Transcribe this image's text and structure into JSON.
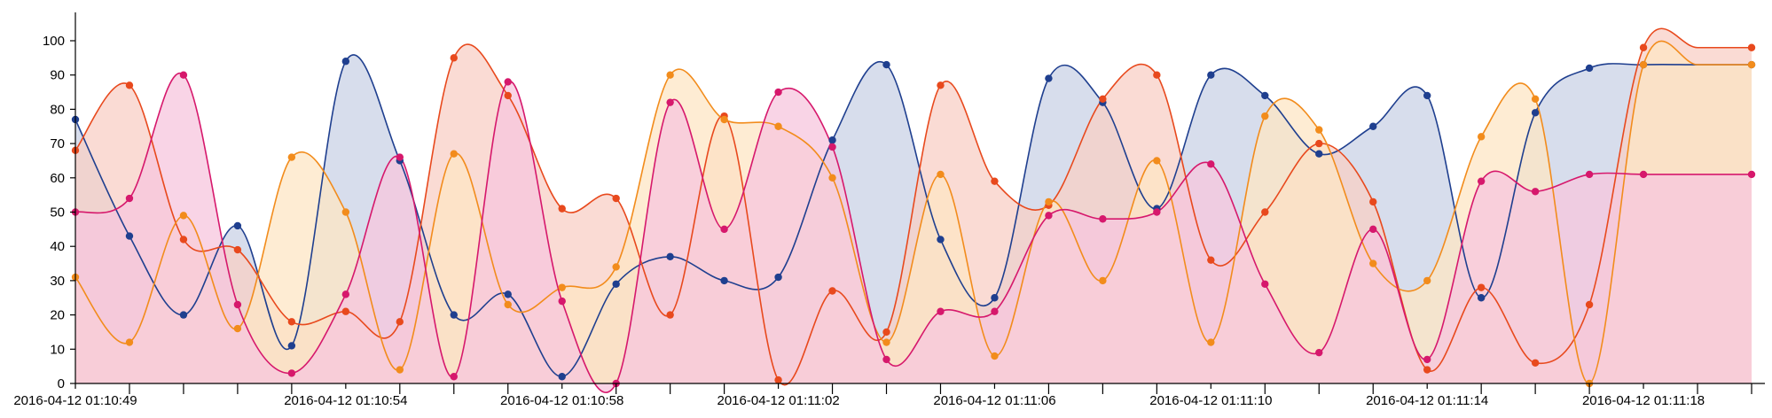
{
  "chart_data": {
    "type": "area",
    "x": [
      "01:10:49",
      "01:10:50",
      "01:10:51",
      "01:10:52",
      "01:10:53",
      "01:10:54",
      "01:10:55",
      "01:10:56",
      "01:10:57",
      "01:10:58",
      "01:10:59",
      "01:11:00",
      "01:11:01",
      "01:11:02",
      "01:11:03",
      "01:11:04",
      "01:11:05",
      "01:11:06",
      "01:11:07",
      "01:11:08",
      "01:11:09",
      "01:11:10",
      "01:11:11",
      "01:11:12",
      "01:11:13",
      "01:11:14",
      "01:11:15",
      "01:11:16",
      "01:11:17",
      "01:11:18",
      "01:11:19",
      "01:11:20"
    ],
    "x_labels": [
      "2016-04-12 01:10:49",
      "2016-04-12 01:10:54",
      "2016-04-12 01:10:58",
      "2016-04-12 01:11:02",
      "2016-04-12 01:11:06",
      "2016-04-12 01:11:10",
      "2016-04-12 01:11:14",
      "2016-04-12 01:11:18"
    ],
    "x_label_times": [
      "01:10:49",
      "01:10:54",
      "01:10:58",
      "01:11:02",
      "01:11:06",
      "01:11:10",
      "01:11:14",
      "01:11:18"
    ],
    "ylim": [
      0,
      105
    ],
    "yticks": [
      0,
      10,
      20,
      30,
      40,
      50,
      60,
      70,
      80,
      90,
      100
    ],
    "grid": false,
    "series": [
      {
        "color": "#1f3f8f",
        "fill": "#c9d2e6",
        "values": [
          77,
          43,
          20,
          46,
          11,
          94,
          65,
          20,
          26,
          2,
          29,
          37,
          30,
          31,
          71,
          93,
          42,
          25,
          89,
          82,
          51,
          90,
          84,
          67,
          75,
          84,
          25,
          79,
          92,
          93,
          93,
          93
        ]
      },
      {
        "color": "#e8491d",
        "fill": "#f8cfc6",
        "values": [
          68,
          87,
          42,
          39,
          18,
          21,
          18,
          95,
          84,
          51,
          54,
          20,
          78,
          1,
          27,
          15,
          87,
          59,
          52,
          83,
          90,
          36,
          50,
          70,
          53,
          4,
          28,
          6,
          23,
          98,
          98,
          98
        ]
      },
      {
        "color": "#f28c1c",
        "fill": "#fde6c4",
        "values": [
          31,
          12,
          49,
          16,
          66,
          50,
          4,
          67,
          23,
          28,
          34,
          90,
          77,
          75,
          60,
          12,
          61,
          8,
          53,
          30,
          65,
          12,
          78,
          74,
          35,
          30,
          72,
          83,
          0,
          93,
          93,
          93
        ]
      },
      {
        "color": "#d6186c",
        "fill": "#f7c6dd",
        "values": [
          50,
          54,
          90,
          23,
          3,
          26,
          66,
          2,
          88,
          24,
          0,
          82,
          45,
          85,
          69,
          7,
          21,
          21,
          49,
          48,
          50,
          64,
          29,
          9,
          45,
          7,
          59,
          56,
          61,
          61,
          61,
          61
        ]
      }
    ]
  }
}
